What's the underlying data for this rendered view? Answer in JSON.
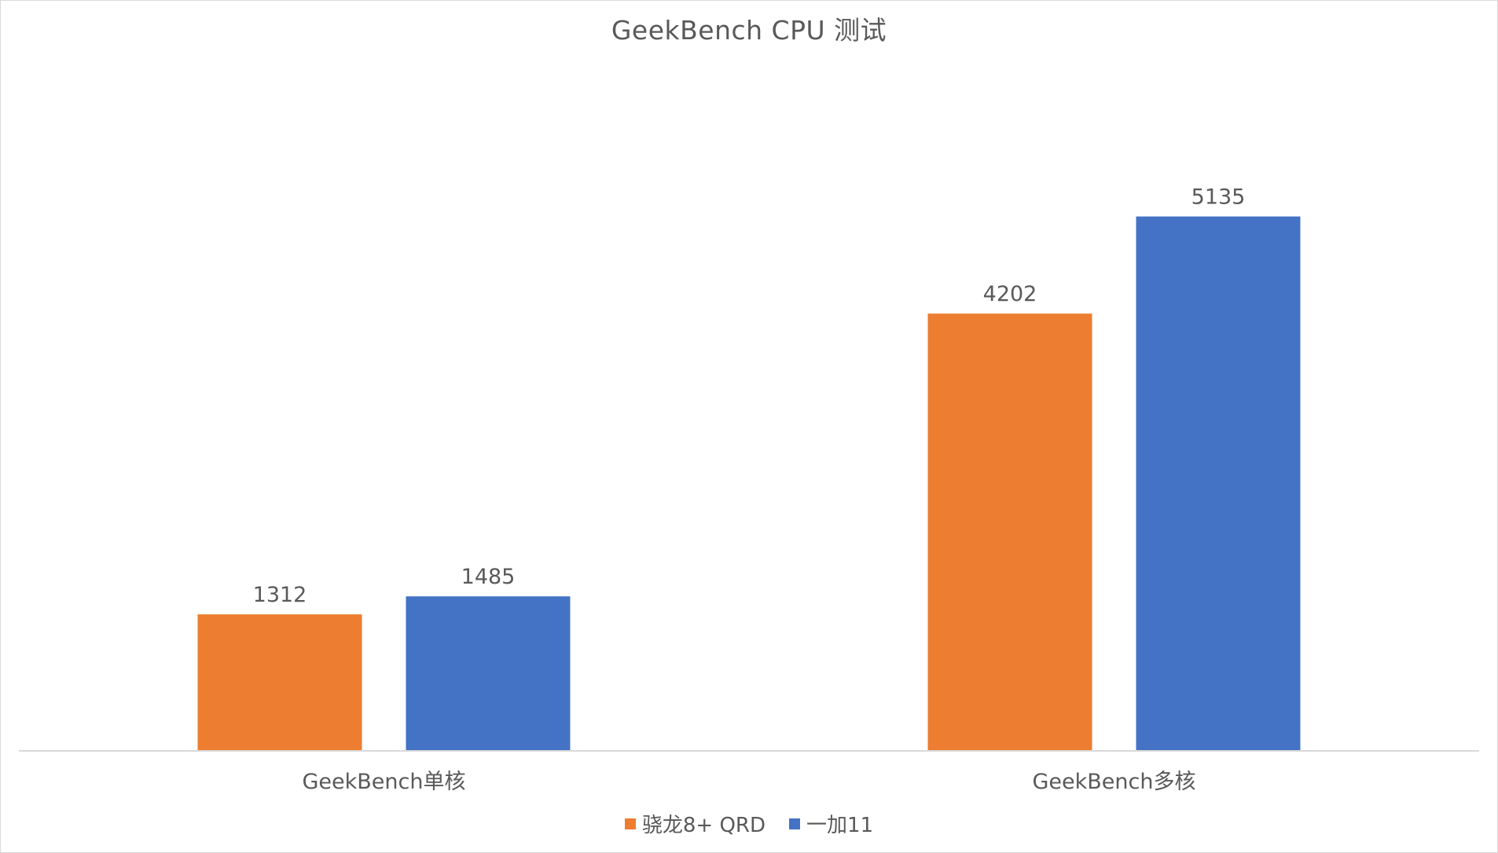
{
  "chart_data": {
    "type": "bar",
    "title": "GeekBench CPU 测试",
    "categories": [
      "GeekBench单核",
      "GeekBench多核"
    ],
    "series": [
      {
        "name": "骁龙8+ QRD",
        "values": [
          1312,
          4202
        ],
        "color": "#ED7D31"
      },
      {
        "name": "一加11",
        "values": [
          1485,
          5135
        ],
        "color": "#4472C4"
      }
    ],
    "xlabel": "",
    "ylabel": "",
    "ylim": [
      0,
      6000
    ],
    "grid": false,
    "legend_position": "bottom"
  }
}
